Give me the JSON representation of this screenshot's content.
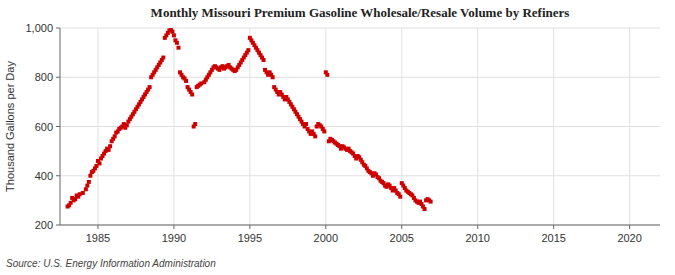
{
  "chart_data": {
    "type": "scatter",
    "title": "Monthly Missouri Premium Gasoline Wholesale/Resale Volume by Refiners",
    "y_label": "Thousand Gallons per Day",
    "source": "Source: U.S. Energy Information Administration",
    "color": "#cc0000",
    "marker": "square",
    "grid": true,
    "xlim": [
      1982.5,
      2022
    ],
    "ylim": [
      200,
      1000
    ],
    "xticks": [
      1985,
      1990,
      1995,
      2000,
      2005,
      2010,
      2015,
      2020
    ],
    "yticks": [
      200,
      400,
      600,
      800,
      {
        "value": 1000,
        "label": "1,000"
      }
    ],
    "x": [
      1983.0,
      1983.1,
      1983.2,
      1983.3,
      1983.4,
      1983.5,
      1983.6,
      1983.7,
      1983.8,
      1984.0,
      1984.2,
      1984.3,
      1984.4,
      1984.5,
      1984.6,
      1984.7,
      1984.8,
      1984.9,
      1985.0,
      1985.1,
      1985.2,
      1985.3,
      1985.4,
      1985.5,
      1985.6,
      1985.7,
      1985.8,
      1985.9,
      1986.0,
      1986.1,
      1986.2,
      1986.3,
      1986.4,
      1986.5,
      1986.6,
      1986.7,
      1986.8,
      1986.9,
      1987.0,
      1987.1,
      1987.2,
      1987.3,
      1987.4,
      1987.5,
      1987.6,
      1987.7,
      1987.8,
      1987.9,
      1988.0,
      1988.1,
      1988.2,
      1988.3,
      1988.4,
      1988.5,
      1988.6,
      1988.7,
      1988.8,
      1988.9,
      1989.0,
      1989.1,
      1989.2,
      1989.3,
      1989.4,
      1989.5,
      1989.6,
      1989.7,
      1989.8,
      1989.9,
      1990.0,
      1990.1,
      1990.2,
      1990.3,
      1990.4,
      1990.5,
      1990.6,
      1990.7,
      1990.8,
      1990.9,
      1991.0,
      1991.1,
      1991.2,
      1991.3,
      1991.4,
      1991.5,
      1991.6,
      1991.7,
      1991.8,
      1992.0,
      1992.1,
      1992.2,
      1992.3,
      1992.4,
      1992.5,
      1992.6,
      1992.7,
      1992.8,
      1992.9,
      1993.0,
      1993.1,
      1993.2,
      1993.3,
      1993.4,
      1993.5,
      1993.6,
      1993.7,
      1993.8,
      1993.9,
      1994.0,
      1994.1,
      1994.2,
      1994.3,
      1994.4,
      1994.5,
      1994.6,
      1994.7,
      1994.8,
      1994.9,
      1995.0,
      1995.1,
      1995.2,
      1995.3,
      1995.4,
      1995.5,
      1995.6,
      1995.7,
      1995.8,
      1995.9,
      1996.0,
      1996.1,
      1996.2,
      1996.3,
      1996.4,
      1996.5,
      1996.6,
      1996.7,
      1996.8,
      1996.9,
      1997.0,
      1997.1,
      1997.2,
      1997.3,
      1997.4,
      1997.5,
      1997.6,
      1997.7,
      1997.8,
      1997.9,
      1998.0,
      1998.1,
      1998.2,
      1998.3,
      1998.4,
      1998.5,
      1998.6,
      1998.7,
      1998.8,
      1998.9,
      1999.0,
      1999.1,
      1999.2,
      1999.3,
      1999.4,
      1999.5,
      1999.6,
      1999.7,
      1999.8,
      1999.9,
      2000.0,
      2000.1,
      2000.2,
      2000.3,
      2000.4,
      2000.5,
      2000.6,
      2000.7,
      2000.8,
      2000.9,
      2001.0,
      2001.1,
      2001.2,
      2001.3,
      2001.4,
      2001.5,
      2001.6,
      2001.7,
      2001.8,
      2001.9,
      2002.0,
      2002.1,
      2002.2,
      2002.3,
      2002.4,
      2002.5,
      2002.6,
      2002.7,
      2002.8,
      2002.9,
      2003.0,
      2003.1,
      2003.2,
      2003.3,
      2003.4,
      2003.5,
      2003.6,
      2003.7,
      2003.8,
      2003.9,
      2004.0,
      2004.1,
      2004.2,
      2004.3,
      2004.4,
      2004.5,
      2004.6,
      2004.7,
      2004.8,
      2004.9,
      2005.0,
      2005.1,
      2005.2,
      2005.3,
      2005.4,
      2005.5,
      2005.6,
      2005.7,
      2005.8,
      2005.9,
      2006.0,
      2006.1,
      2006.2,
      2006.3,
      2006.4,
      2006.5,
      2006.6,
      2006.7,
      2006.8,
      2006.9
    ],
    "values": [
      275,
      280,
      290,
      310,
      300,
      305,
      320,
      315,
      325,
      330,
      345,
      360,
      375,
      400,
      415,
      420,
      430,
      440,
      460,
      450,
      470,
      480,
      490,
      500,
      510,
      505,
      520,
      540,
      550,
      560,
      575,
      580,
      590,
      595,
      600,
      610,
      595,
      605,
      620,
      630,
      640,
      650,
      660,
      670,
      680,
      690,
      700,
      710,
      720,
      730,
      740,
      750,
      760,
      800,
      810,
      820,
      830,
      840,
      850,
      860,
      870,
      880,
      960,
      970,
      980,
      990,
      1000,
      985,
      970,
      950,
      940,
      920,
      820,
      810,
      800,
      795,
      785,
      760,
      750,
      740,
      730,
      600,
      610,
      760,
      765,
      770,
      775,
      780,
      790,
      800,
      810,
      820,
      830,
      840,
      845,
      840,
      835,
      830,
      840,
      845,
      835,
      840,
      845,
      850,
      840,
      835,
      830,
      825,
      830,
      840,
      850,
      860,
      870,
      880,
      890,
      900,
      910,
      960,
      950,
      940,
      930,
      920,
      910,
      900,
      890,
      880,
      870,
      830,
      820,
      810,
      820,
      810,
      800,
      760,
      750,
      740,
      730,
      740,
      730,
      720,
      710,
      720,
      710,
      700,
      690,
      680,
      670,
      660,
      650,
      640,
      630,
      620,
      610,
      600,
      610,
      590,
      580,
      570,
      580,
      570,
      560,
      600,
      610,
      605,
      600,
      590,
      580,
      820,
      810,
      540,
      550,
      545,
      540,
      535,
      530,
      525,
      520,
      510,
      520,
      515,
      510,
      505,
      510,
      500,
      495,
      490,
      480,
      470,
      480,
      475,
      465,
      455,
      445,
      440,
      430,
      420,
      415,
      410,
      400,
      410,
      405,
      395,
      390,
      380,
      375,
      370,
      360,
      355,
      365,
      360,
      350,
      340,
      350,
      340,
      330,
      325,
      315,
      370,
      360,
      350,
      340,
      335,
      330,
      325,
      320,
      310,
      300,
      295,
      290,
      295,
      285,
      275,
      265,
      300,
      305,
      300,
      295
    ]
  }
}
